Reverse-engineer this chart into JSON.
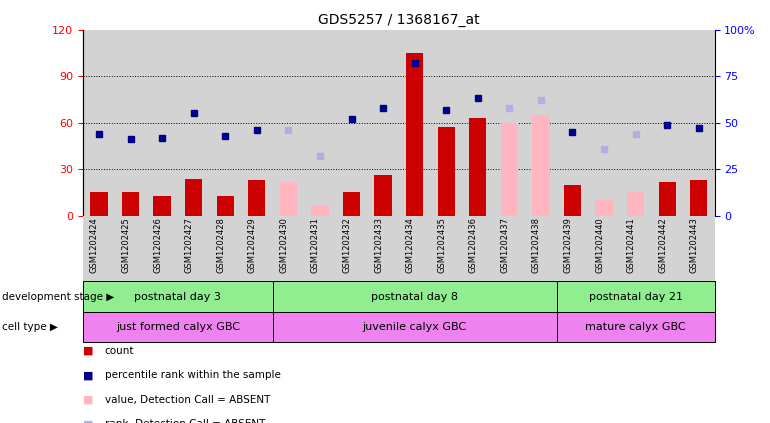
{
  "title": "GDS5257 / 1368167_at",
  "samples": [
    "GSM1202424",
    "GSM1202425",
    "GSM1202426",
    "GSM1202427",
    "GSM1202428",
    "GSM1202429",
    "GSM1202430",
    "GSM1202431",
    "GSM1202432",
    "GSM1202433",
    "GSM1202434",
    "GSM1202435",
    "GSM1202436",
    "GSM1202437",
    "GSM1202438",
    "GSM1202439",
    "GSM1202440",
    "GSM1202441",
    "GSM1202442",
    "GSM1202443"
  ],
  "count_present": [
    15,
    15,
    13,
    24,
    13,
    23,
    null,
    null,
    15,
    26,
    105,
    57,
    63,
    null,
    null,
    20,
    null,
    null,
    22,
    23
  ],
  "count_absent": [
    null,
    null,
    null,
    null,
    null,
    null,
    22,
    7,
    null,
    null,
    null,
    null,
    null,
    60,
    65,
    null,
    10,
    15,
    null,
    null
  ],
  "rank_present": [
    44,
    41,
    42,
    55,
    43,
    46,
    null,
    null,
    52,
    58,
    82,
    57,
    63,
    null,
    null,
    45,
    null,
    null,
    49,
    47
  ],
  "rank_absent": [
    null,
    null,
    null,
    null,
    null,
    null,
    46,
    32,
    null,
    null,
    null,
    null,
    null,
    58,
    62,
    null,
    36,
    44,
    null,
    null
  ],
  "dev_groups": [
    {
      "label": "postnatal day 3",
      "start": 0,
      "end": 5,
      "color": "#90ee90"
    },
    {
      "label": "postnatal day 8",
      "start": 6,
      "end": 14,
      "color": "#90ee90"
    },
    {
      "label": "postnatal day 21",
      "start": 15,
      "end": 19,
      "color": "#90ee90"
    }
  ],
  "cell_groups": [
    {
      "label": "just formed calyx GBC",
      "start": 0,
      "end": 5,
      "color": "#ee82ee"
    },
    {
      "label": "juvenile calyx GBC",
      "start": 6,
      "end": 14,
      "color": "#ee82ee"
    },
    {
      "label": "mature calyx GBC",
      "start": 15,
      "end": 19,
      "color": "#ee82ee"
    }
  ],
  "ylim_left": [
    0,
    120
  ],
  "ylim_right": [
    0,
    100
  ],
  "yticks_left": [
    0,
    30,
    60,
    90,
    120
  ],
  "yticks_right": [
    0,
    25,
    50,
    75,
    100
  ],
  "count_color_present": "#cc0000",
  "count_color_absent": "#ffb6c1",
  "rank_color_present": "#00008b",
  "rank_color_absent": "#b0b0e0",
  "col_bg_color": "#d3d3d3",
  "legend_items": [
    {
      "label": "count",
      "color": "#cc0000"
    },
    {
      "label": "percentile rank within the sample",
      "color": "#00008b"
    },
    {
      "label": "value, Detection Call = ABSENT",
      "color": "#ffb6c1"
    },
    {
      "label": "rank, Detection Call = ABSENT",
      "color": "#b0b0e0"
    }
  ],
  "dev_stage_label": "development stage",
  "cell_type_label": "cell type"
}
